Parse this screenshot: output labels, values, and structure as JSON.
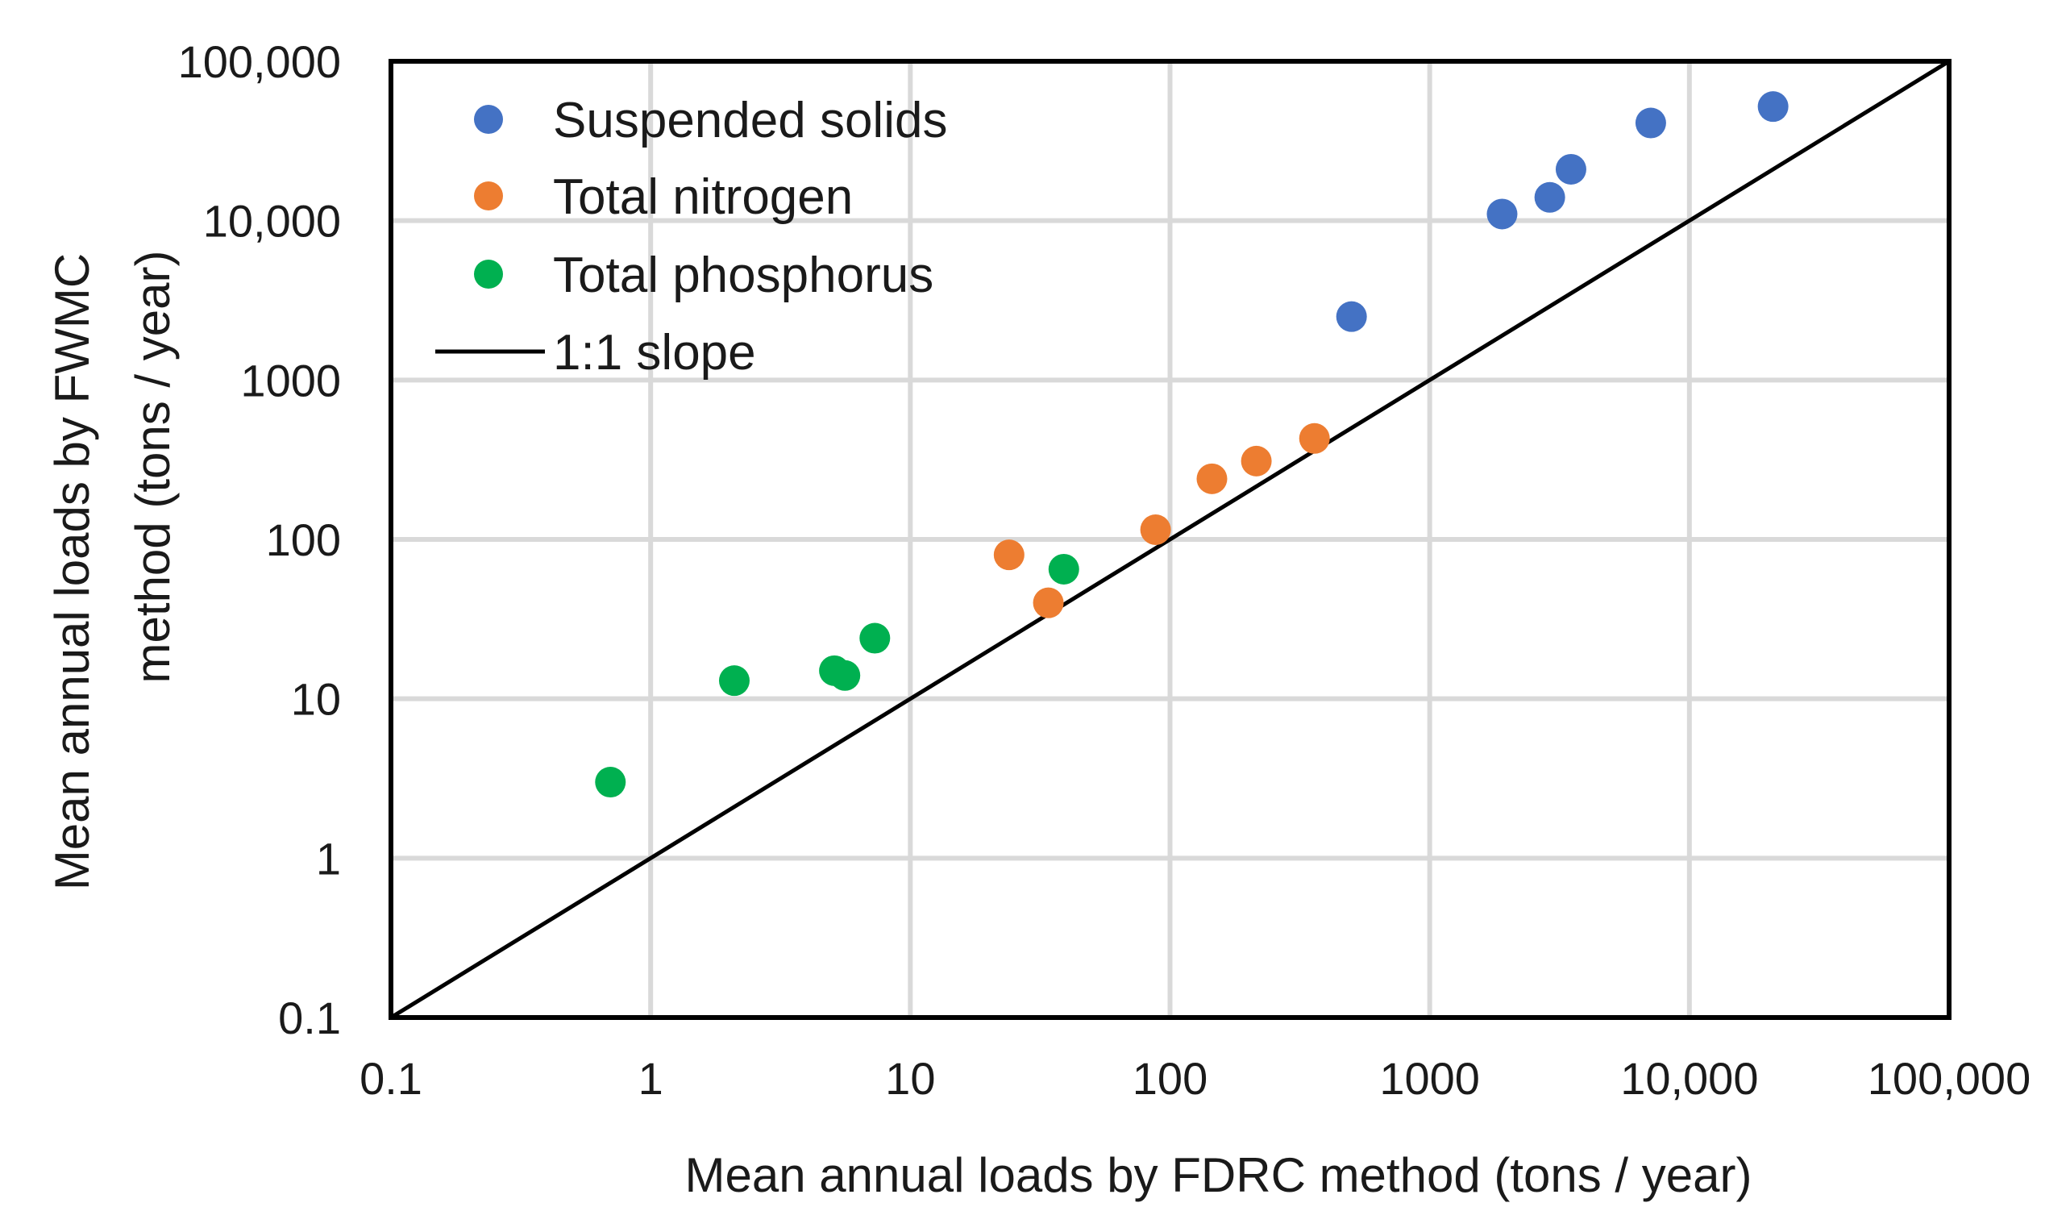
{
  "chart_data": {
    "type": "scatter",
    "title": "",
    "xlabel": "Mean annual loads by FDRC method (tons / year)",
    "ylabel_lines": [
      "Mean annual loads  by FWMC",
      "method (tons / year)"
    ],
    "xscale": "log",
    "yscale": "log",
    "xlim": [
      0.1,
      100000
    ],
    "ylim": [
      0.1,
      100000
    ],
    "grid": true,
    "legend_position": "top-left",
    "x_tick_labels": [
      "0.1",
      "1",
      "10",
      "100",
      "1000",
      "10,000",
      "100,000"
    ],
    "y_tick_labels": [
      "0.1",
      "1",
      "10",
      "100",
      "1000",
      "10,000",
      "100,000"
    ],
    "tick_values": [
      0.1,
      1,
      10,
      100,
      1000,
      10000,
      100000
    ],
    "series": [
      {
        "name": "Suspended solids",
        "color": "#4472C4",
        "points": [
          {
            "x": 500,
            "y": 2500
          },
          {
            "x": 1900,
            "y": 11000
          },
          {
            "x": 2900,
            "y": 14000
          },
          {
            "x": 3500,
            "y": 21000
          },
          {
            "x": 7100,
            "y": 41000
          },
          {
            "x": 21000,
            "y": 52000
          }
        ]
      },
      {
        "name": "Total nitrogen",
        "color": "#ED7D31",
        "points": [
          {
            "x": 24,
            "y": 80
          },
          {
            "x": 34,
            "y": 40
          },
          {
            "x": 88,
            "y": 115
          },
          {
            "x": 145,
            "y": 240
          },
          {
            "x": 215,
            "y": 310
          },
          {
            "x": 360,
            "y": 430
          }
        ]
      },
      {
        "name": "Total phosphorus",
        "color": "#00B050",
        "points": [
          {
            "x": 0.7,
            "y": 3
          },
          {
            "x": 2.1,
            "y": 13
          },
          {
            "x": 5.1,
            "y": 15
          },
          {
            "x": 5.6,
            "y": 14
          },
          {
            "x": 7.3,
            "y": 24
          },
          {
            "x": 39,
            "y": 65
          }
        ]
      }
    ],
    "reference_line": {
      "name": "1:1 slope",
      "color": "#000000",
      "points": [
        {
          "x": 0.1,
          "y": 0.1
        },
        {
          "x": 100000,
          "y": 100000
        }
      ]
    }
  }
}
